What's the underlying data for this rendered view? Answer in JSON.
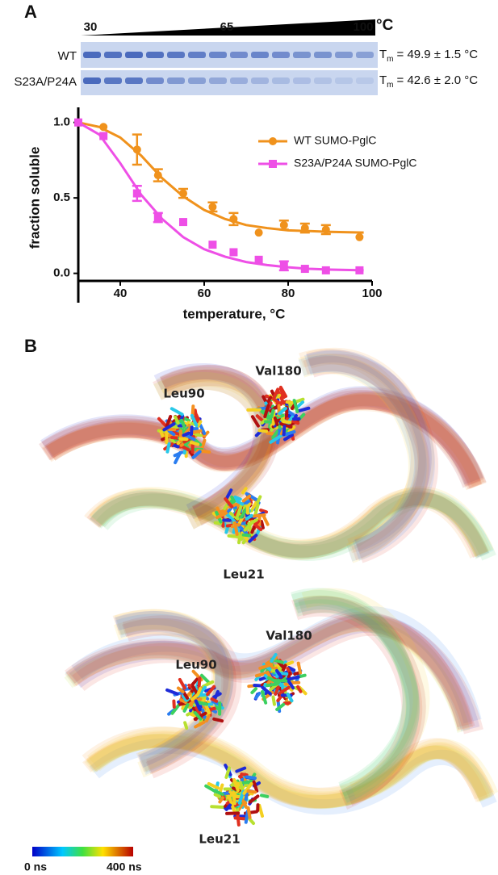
{
  "panel_a": {
    "label": "A",
    "gel": {
      "ticks": [
        30,
        65,
        100
      ],
      "unit": "°C",
      "lanes": [
        {
          "name": "WT",
          "tm": {
            "symbol": "T",
            "subscript": "m",
            "text": "= 49.9 ± 1.5 °C"
          }
        },
        {
          "name": "S23A/P24A",
          "tm": {
            "symbol": "T",
            "subscript": "m",
            "text": "= 42.6 ± 2.0 °C"
          }
        }
      ]
    }
  },
  "chart_data": {
    "type": "scatter",
    "x_label": "temperature, °C",
    "y_label": "fraction soluble",
    "x": [
      30,
      36,
      44,
      49,
      55,
      62,
      67,
      73,
      79,
      84,
      89,
      97
    ],
    "fit_x": [
      30,
      35,
      40,
      45,
      50,
      55,
      60,
      65,
      70,
      75,
      80,
      85,
      90,
      98
    ],
    "series": [
      {
        "name": "WT SUMO-PglC",
        "color": "#f0921c",
        "marker": "circle",
        "values": [
          1.0,
          0.97,
          0.82,
          0.65,
          0.53,
          0.44,
          0.36,
          0.27,
          0.32,
          0.3,
          0.29,
          0.24
        ],
        "errors": [
          null,
          null,
          0.1,
          0.04,
          0.03,
          0.03,
          0.04,
          null,
          0.03,
          0.03,
          0.03,
          null
        ],
        "fit": [
          1.0,
          0.97,
          0.9,
          0.78,
          0.63,
          0.51,
          0.42,
          0.36,
          0.32,
          0.3,
          0.285,
          0.28,
          0.275,
          0.27
        ]
      },
      {
        "name": "S23A/P24A SUMO-PglC",
        "color": "#ee4fe6",
        "marker": "square",
        "values": [
          1.0,
          0.91,
          0.53,
          0.37,
          0.34,
          0.19,
          0.14,
          0.09,
          0.05,
          0.03,
          0.02,
          0.02
        ],
        "errors": [
          null,
          null,
          0.05,
          0.03,
          null,
          null,
          null,
          null,
          0.03,
          null,
          null,
          null
        ],
        "fit": [
          1.0,
          0.92,
          0.73,
          0.52,
          0.36,
          0.24,
          0.16,
          0.11,
          0.075,
          0.055,
          0.04,
          0.03,
          0.025,
          0.02
        ]
      }
    ],
    "xlim": [
      30,
      100
    ],
    "xticks": [
      40,
      60,
      80,
      100
    ],
    "ylim": [
      -0.05,
      1.1
    ],
    "yticks": [
      {
        "value": 0,
        "label": "0.0"
      },
      {
        "value": 0.5,
        "label": "0.5"
      },
      {
        "value": 1,
        "label": "1.0"
      }
    ],
    "legend": "upper right"
  },
  "panel_b": {
    "label": "B",
    "structures": [
      {
        "residues": [
          "Leu90",
          "Val180",
          "Leu21"
        ]
      },
      {
        "residues": [
          "Leu90",
          "Val180",
          "Leu21"
        ]
      }
    ],
    "colorbar": {
      "min_label": "0 ns",
      "max_label": "400 ns"
    }
  }
}
